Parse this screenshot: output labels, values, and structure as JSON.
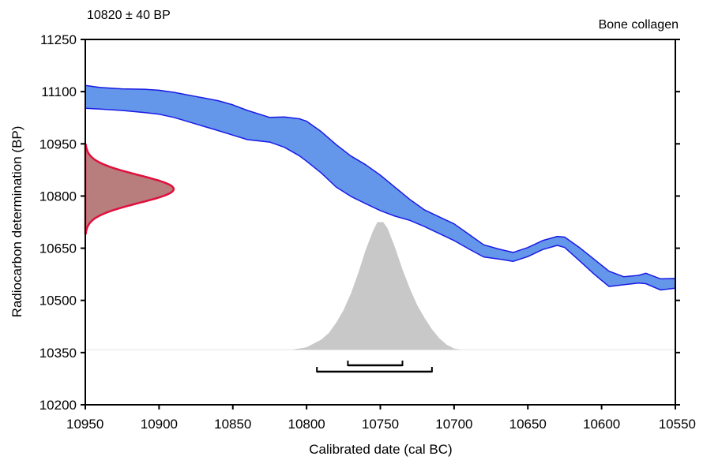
{
  "chart_data": {
    "type": "area",
    "title": "10820 ± 40 BP",
    "subtitle": "Bone collagen",
    "xlabel": "Calibrated date (cal BC)",
    "ylabel": "Radiocarbon determination (BP)",
    "xlim": [
      10950,
      10550
    ],
    "ylim": [
      10200,
      11250
    ],
    "xticks": [
      "10950",
      "10900",
      "10850",
      "10800",
      "10750",
      "10700",
      "10650",
      "10600",
      "10550"
    ],
    "yticks": [
      "10200",
      "10350",
      "10500",
      "10650",
      "10800",
      "10950",
      "11100",
      "11250"
    ],
    "calibration_curve": {
      "x": [
        10950,
        10940,
        10925,
        10910,
        10900,
        10890,
        10875,
        10860,
        10850,
        10840,
        10825,
        10815,
        10805,
        10800,
        10790,
        10780,
        10770,
        10760,
        10750,
        10740,
        10730,
        10720,
        10710,
        10700,
        10690,
        10680,
        10670,
        10660,
        10650,
        10640,
        10630,
        10625,
        10615,
        10605,
        10595,
        10585,
        10575,
        10570,
        10560,
        10550
      ],
      "upper": [
        11118,
        11112,
        11108,
        11107,
        11104,
        11098,
        11086,
        11074,
        11062,
        11046,
        11026,
        11027,
        11022,
        11015,
        10985,
        10948,
        10915,
        10890,
        10860,
        10825,
        10790,
        10760,
        10740,
        10720,
        10690,
        10660,
        10648,
        10638,
        10652,
        10672,
        10684,
        10682,
        10652,
        10618,
        10584,
        10568,
        10572,
        10578,
        10562,
        10563
      ],
      "lower": [
        11052,
        11050,
        11046,
        11040,
        11035,
        11026,
        11007,
        10988,
        10975,
        10962,
        10955,
        10940,
        10916,
        10900,
        10866,
        10826,
        10799,
        10778,
        10758,
        10742,
        10730,
        10712,
        10692,
        10672,
        10648,
        10625,
        10619,
        10612,
        10626,
        10646,
        10658,
        10652,
        10614,
        10575,
        10540,
        10545,
        10550,
        10548,
        10530,
        10535
      ]
    },
    "measurement": {
      "mean": 10820,
      "sigma": 40
    },
    "calibrated_distribution": {
      "x": [
        10810,
        10800,
        10795,
        10790,
        10785,
        10780,
        10775,
        10770,
        10765,
        10760,
        10755,
        10752,
        10748,
        10745,
        10740,
        10735,
        10730,
        10725,
        10720,
        10715,
        10710,
        10705,
        10700,
        10695
      ],
      "density": [
        0.0,
        0.02,
        0.05,
        0.08,
        0.13,
        0.21,
        0.31,
        0.44,
        0.6,
        0.78,
        0.93,
        1.0,
        1.0,
        0.95,
        0.8,
        0.63,
        0.48,
        0.35,
        0.25,
        0.16,
        0.09,
        0.04,
        0.01,
        0.0
      ]
    },
    "ranges": {
      "one_sigma": [
        10772,
        10735
      ],
      "two_sigma": [
        10793,
        10715
      ]
    },
    "colors": {
      "curve_fill": "#6496ea",
      "curve_edge": "#1a1ae6",
      "measurement_fill": "#b87d7d",
      "measurement_edge": "#e0103c",
      "distribution_fill": "#c8c8c8",
      "range_bar": "#000000"
    },
    "grid": false
  }
}
